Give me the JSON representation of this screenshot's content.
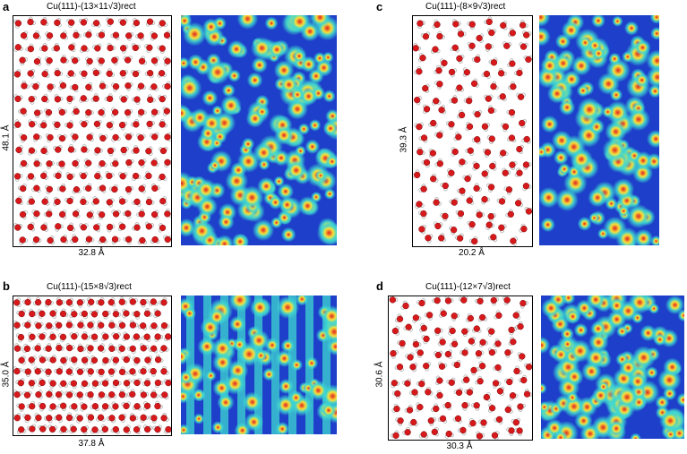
{
  "panels": [
    {
      "letter": "a",
      "title": "Cu(111)-(13×11√3)rect",
      "width_label": "32.8 Å",
      "height_label": "48.1 Å"
    },
    {
      "letter": "b",
      "title": "Cu(111)-(15×8√3)rect",
      "width_label": "37.8 Å",
      "height_label": "35.0 Å"
    },
    {
      "letter": "c",
      "title": "Cu(111)-(8×9√3)rect",
      "width_label": "20.2 Å",
      "height_label": "39.3 Å"
    },
    {
      "letter": "d",
      "title": "Cu(111)-(12×7√3)rect",
      "width_label": "30.3 Å",
      "height_label": "30.6 Å"
    }
  ],
  "colors": {
    "oxygen": "#d7191c",
    "hydrogen": "#f2f2f2",
    "map_low": "#1d3fc9",
    "map_mid": "#3fd7d0",
    "map_high": "#e02020"
  }
}
